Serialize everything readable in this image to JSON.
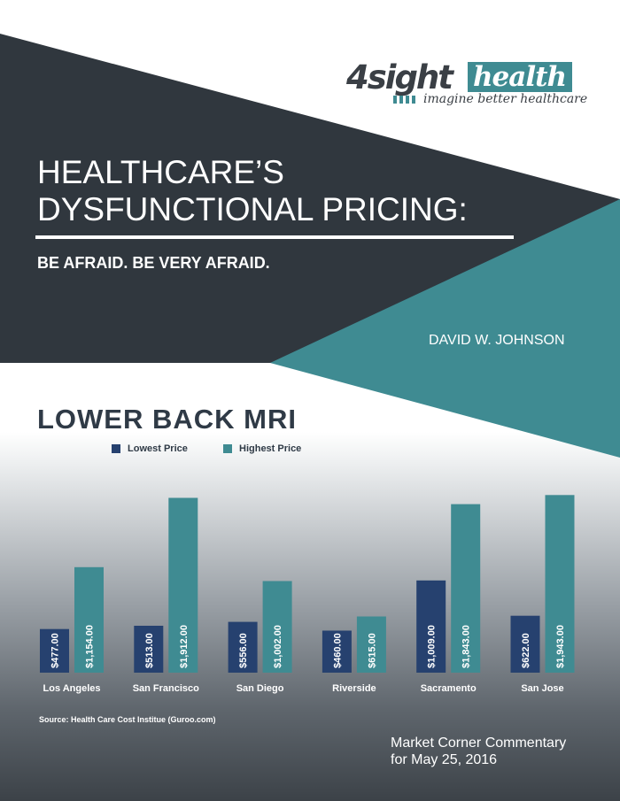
{
  "logo": {
    "word_dark": "4sight",
    "word_light": "health",
    "tagline": "imagine better healthcare"
  },
  "header": {
    "title_line1": "HEALTHCARE’S",
    "title_line2": "DYSFUNCTIONAL PRICING:",
    "subtitle": "BE AFRAID. BE VERY AFRAID.",
    "author": "DAVID W. JOHNSON"
  },
  "colors": {
    "dark": "#30373e",
    "teal": "#3f8b92",
    "bar_low": "#26416f",
    "bar_high": "#3f8b92"
  },
  "chart_data": {
    "type": "bar",
    "title": "LOWER BACK MRI",
    "categories": [
      "Los Angeles",
      "San Francisco",
      "San Diego",
      "Riverside",
      "Sacramento",
      "San Jose"
    ],
    "series": [
      {
        "name": "Lowest Price",
        "values": [
          477,
          513,
          556,
          460,
          1009,
          622
        ],
        "labels": [
          "$477.00",
          "$513.00",
          "$556.00",
          "$460.00",
          "$1,009.00",
          "$622.00"
        ]
      },
      {
        "name": "Highest Price",
        "values": [
          1154,
          1912,
          1002,
          615,
          1843,
          1943
        ],
        "labels": [
          "$1,154.00",
          "$1,912.00",
          "$1,002.00",
          "$615.00",
          "$1,843.00",
          "$1,943.00"
        ]
      }
    ],
    "legend": "top-left",
    "grid": false
  },
  "source": "Source: Health Care Cost Institue (Guroo.com)",
  "footer": {
    "line1": "Market Corner Commentary",
    "line2": "for May 25, 2016"
  }
}
